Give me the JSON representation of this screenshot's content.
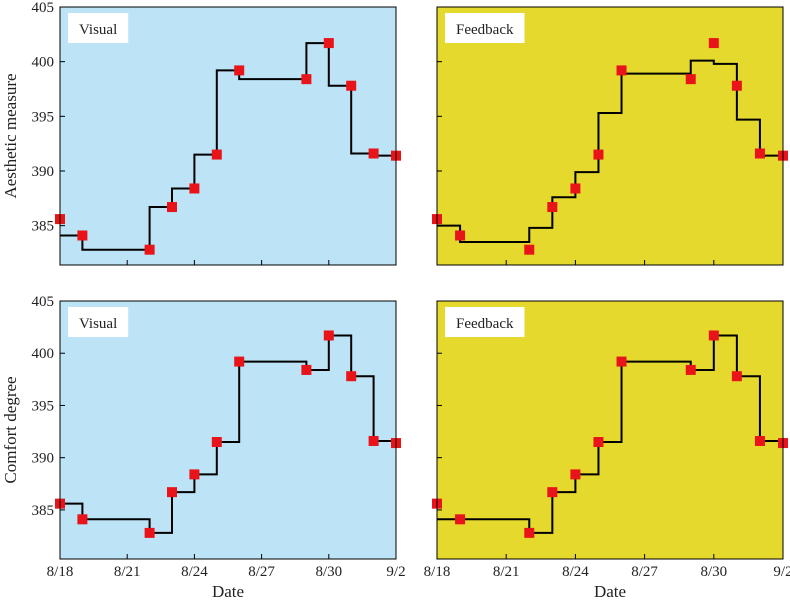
{
  "chart_data": [
    {
      "type": "step",
      "title": "Visual",
      "ylabel": "Aesthetic measure",
      "x": [
        "8/18",
        "8/19",
        "8/22",
        "8/23",
        "8/24",
        "8/25",
        "8/26",
        "8/29",
        "8/30",
        "8/31",
        "9/1",
        "9/2"
      ],
      "values": [
        385.6,
        384.1,
        382.8,
        386.7,
        388.4,
        391.5,
        399.2,
        398.4,
        401.7,
        397.8,
        391.6,
        391.4
      ],
      "step_values": [
        384.1,
        382.8,
        386.7,
        388.4,
        391.5,
        399.2,
        398.4,
        401.7,
        397.8,
        391.6,
        391.4,
        391.4
      ],
      "background": "#bde3f7",
      "marker_color": "#e8141a",
      "line_color": "#000000",
      "xlim": [
        "8/18",
        "9/2"
      ],
      "xticks": [
        "8/18",
        "8/21",
        "8/24",
        "8/27",
        "8/30",
        "9/2"
      ],
      "ylim": [
        381.4,
        405
      ],
      "yticks": [
        385,
        390,
        395,
        400,
        405
      ],
      "yticklabels": true,
      "xticklabels": false
    },
    {
      "type": "step",
      "title": "Feedback",
      "x": [
        "8/18",
        "8/19",
        "8/22",
        "8/23",
        "8/24",
        "8/25",
        "8/26",
        "8/29",
        "8/30",
        "8/31",
        "9/1",
        "9/2"
      ],
      "values": [
        385.6,
        384.1,
        382.8,
        386.7,
        388.4,
        391.5,
        399.2,
        398.4,
        401.7,
        397.8,
        391.6,
        391.4
      ],
      "step_values": [
        385.0,
        383.5,
        384.8,
        387.6,
        389.9,
        395.3,
        398.9,
        400.1,
        399.8,
        394.7,
        391.4,
        391.4
      ],
      "background": "#e5d92e",
      "marker_color": "#e8141a",
      "line_color": "#000000",
      "xlim": [
        "8/18",
        "9/2"
      ],
      "xticks": [
        "8/18",
        "8/21",
        "8/24",
        "8/27",
        "8/30",
        "9/2"
      ],
      "ylim": [
        381.4,
        405
      ],
      "yticks": [
        385,
        390,
        395,
        400,
        405
      ],
      "yticklabels": false,
      "xticklabels": false
    },
    {
      "type": "step",
      "title": "Visual",
      "ylabel": "Comfort degree",
      "xlabel": "Date",
      "x": [
        "8/18",
        "8/19",
        "8/22",
        "8/23",
        "8/24",
        "8/25",
        "8/26",
        "8/29",
        "8/30",
        "8/31",
        "9/1",
        "9/2"
      ],
      "values": [
        385.6,
        384.1,
        382.8,
        386.7,
        388.4,
        391.5,
        399.2,
        398.4,
        401.7,
        397.8,
        391.6,
        391.4
      ],
      "step_values": [
        385.6,
        384.1,
        382.8,
        386.7,
        388.4,
        391.5,
        399.2,
        398.4,
        401.7,
        397.8,
        391.6,
        391.4
      ],
      "background": "#bde3f7",
      "marker_color": "#e8141a",
      "line_color": "#000000",
      "xlim": [
        "8/18",
        "9/2"
      ],
      "xticks": [
        "8/18",
        "8/21",
        "8/24",
        "8/27",
        "8/30",
        "9/2"
      ],
      "ylim": [
        380.3,
        405
      ],
      "yticks": [
        385,
        390,
        395,
        400,
        405
      ],
      "yticklabels": true,
      "xticklabels": true
    },
    {
      "type": "step",
      "title": "Feedback",
      "xlabel": "Date",
      "x": [
        "8/18",
        "8/19",
        "8/22",
        "8/23",
        "8/24",
        "8/25",
        "8/26",
        "8/29",
        "8/30",
        "8/31",
        "9/1",
        "9/2"
      ],
      "values": [
        385.6,
        384.1,
        382.8,
        386.7,
        388.4,
        391.5,
        399.2,
        398.4,
        401.7,
        397.8,
        391.6,
        391.4
      ],
      "step_values": [
        384.1,
        384.1,
        382.8,
        386.7,
        388.4,
        391.5,
        399.2,
        398.4,
        401.7,
        397.8,
        391.6,
        391.4
      ],
      "background": "#e5d92e",
      "marker_color": "#e8141a",
      "line_color": "#000000",
      "xlim": [
        "8/18",
        "9/2"
      ],
      "xticks": [
        "8/18",
        "8/21",
        "8/24",
        "8/27",
        "8/30",
        "9/2"
      ],
      "ylim": [
        380.3,
        405
      ],
      "yticks": [
        385,
        390,
        395,
        400,
        405
      ],
      "yticklabels": false,
      "xticklabels": true
    }
  ]
}
